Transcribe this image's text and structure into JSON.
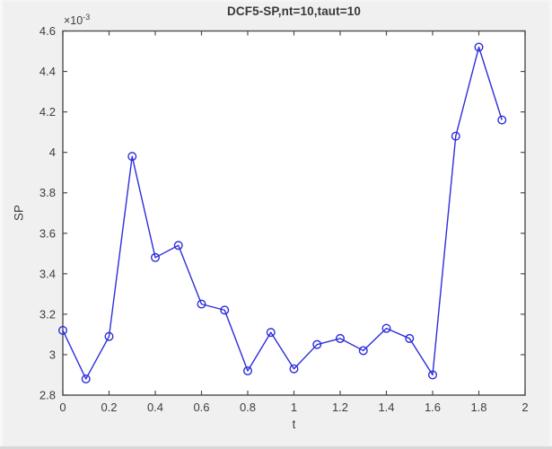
{
  "figure": {
    "background": "#f0f0f0",
    "plot_background": "#ffffff",
    "axis_color": "#4d4d4d",
    "text_color": "#3d3d3d"
  },
  "chart_data": {
    "type": "line",
    "title": "DCF5-SP,nt=10,taut=10",
    "xlabel": "t",
    "ylabel": "SP",
    "y_scale": {
      "base": "×10",
      "exponent": "-3"
    },
    "series": [
      {
        "name": "SP",
        "color": "#2d2ddc",
        "marker": "hollow-circle",
        "x": [
          0,
          0.1,
          0.2,
          0.3,
          0.4,
          0.5,
          0.6,
          0.7,
          0.8,
          0.9,
          1.0,
          1.1,
          1.2,
          1.3,
          1.4,
          1.5,
          1.6,
          1.7,
          1.8,
          1.9
        ],
        "y": [
          3.12,
          2.88,
          3.09,
          3.98,
          3.48,
          3.54,
          3.25,
          3.22,
          2.92,
          3.11,
          2.93,
          3.05,
          3.08,
          3.02,
          3.13,
          3.08,
          2.9,
          4.08,
          4.52,
          4.16
        ],
        "y_unit_multiplier": 0.001
      }
    ],
    "xlim": [
      0,
      2
    ],
    "ylim": [
      2.8,
      4.6
    ],
    "xticks": [
      0,
      0.2,
      0.4,
      0.6,
      0.8,
      1,
      1.2,
      1.4,
      1.6,
      1.8,
      2
    ],
    "xtick_labels": [
      "0",
      "0.2",
      "0.4",
      "0.6",
      "0.8",
      "1",
      "1.2",
      "1.4",
      "1.6",
      "1.8",
      "2"
    ],
    "yticks": [
      2.8,
      3,
      3.2,
      3.4,
      3.6,
      3.8,
      4,
      4.2,
      4.4,
      4.6
    ],
    "ytick_labels": [
      "2.8",
      "3",
      "3.2",
      "3.4",
      "3.6",
      "3.8",
      "4",
      "4.2",
      "4.4",
      "4.6"
    ],
    "grid": false
  }
}
